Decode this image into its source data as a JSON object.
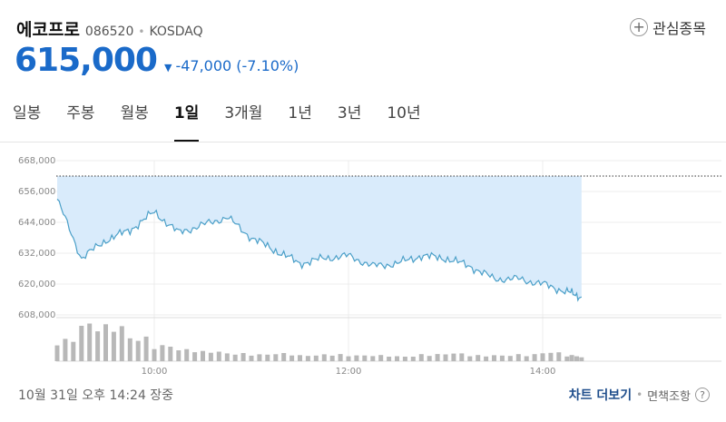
{
  "stock": {
    "name": "에코프로",
    "code": "086520",
    "separator": "•",
    "market": "KOSDAQ",
    "price": "615,000",
    "change": "-47,000 (-7.10%)",
    "direction_icon": "down-triangle-icon"
  },
  "favorite": {
    "icon": "plus-circle-icon",
    "label": "관심종목"
  },
  "tabs": [
    {
      "label": "일봉",
      "active": false
    },
    {
      "label": "주봉",
      "active": false
    },
    {
      "label": "월봉",
      "active": false
    },
    {
      "label": "1일",
      "active": true
    },
    {
      "label": "3개월",
      "active": false
    },
    {
      "label": "1년",
      "active": false
    },
    {
      "label": "3년",
      "active": false
    },
    {
      "label": "10년",
      "active": false
    }
  ],
  "chart_data": {
    "type": "area",
    "y_ticks": [
      "668,000",
      "656,000",
      "644,000",
      "632,000",
      "620,000",
      "608,000"
    ],
    "x_ticks": [
      "10:00",
      "12:00",
      "14:00"
    ],
    "ylim": [
      608000,
      668000
    ],
    "previous_close": 662000,
    "colors": {
      "line": "#4a9fc8",
      "fill": "#d9ebfb",
      "volume": "#b8b8b8",
      "prev_close_line": "#333333"
    },
    "x": [
      "09:00",
      "09:15",
      "09:30",
      "09:45",
      "10:00",
      "10:15",
      "10:30",
      "10:45",
      "11:00",
      "11:15",
      "11:30",
      "11:45",
      "12:00",
      "12:15",
      "12:30",
      "12:45",
      "13:00",
      "13:15",
      "13:30",
      "13:45",
      "14:00",
      "14:15",
      "14:24"
    ],
    "values": [
      653000,
      630000,
      637000,
      641000,
      648000,
      640000,
      643000,
      646000,
      638000,
      633000,
      628000,
      630000,
      631000,
      627000,
      628000,
      631000,
      630000,
      627000,
      622000,
      622000,
      620000,
      617000,
      615000
    ],
    "volume": [
      22,
      38,
      36,
      24,
      16,
      12,
      10,
      8,
      7,
      8,
      6,
      7,
      6,
      6,
      5,
      7,
      8,
      6,
      6,
      7,
      9,
      6,
      4
    ]
  },
  "footer": {
    "date_time": "10월 31일 오후 14:24 장중",
    "chart_more": "차트 더보기",
    "separator": "•",
    "disclaimer": "면책조항",
    "help_icon": "question-circle-icon"
  }
}
